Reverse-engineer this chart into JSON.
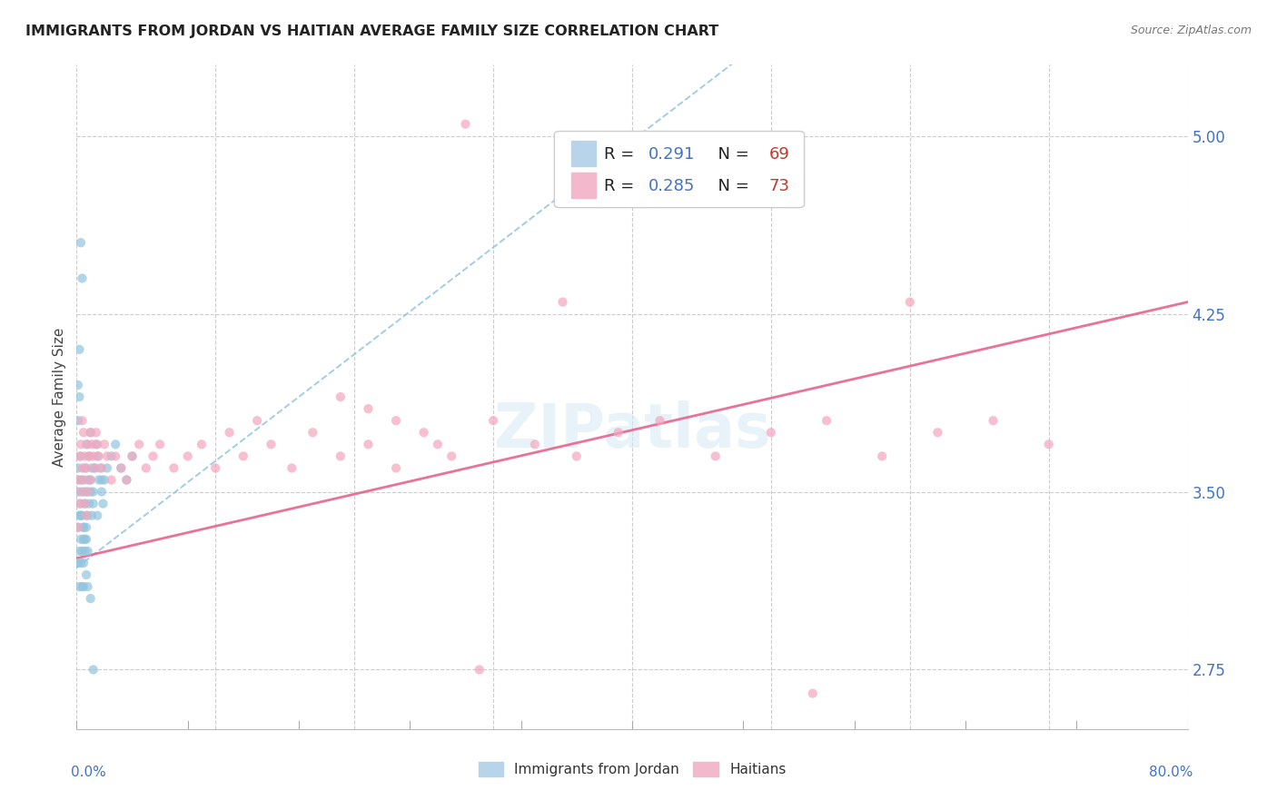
{
  "title": "IMMIGRANTS FROM JORDAN VS HAITIAN AVERAGE FAMILY SIZE CORRELATION CHART",
  "source": "Source: ZipAtlas.com",
  "ylabel": "Average Family Size",
  "right_yticks": [
    2.75,
    3.5,
    4.25,
    5.0
  ],
  "legend1_r": "0.291",
  "legend1_n": "69",
  "legend2_r": "0.285",
  "legend2_n": "73",
  "jordan_color": "#92c5de",
  "haitian_color": "#f4a6be",
  "jordan_line_color": "#92c5de",
  "haitian_line_color": "#e8638c",
  "background_color": "#ffffff",
  "xlim": [
    0.0,
    0.8
  ],
  "ylim": [
    2.5,
    5.3
  ],
  "jordan_x": [
    0.001,
    0.001,
    0.001,
    0.001,
    0.002,
    0.002,
    0.002,
    0.002,
    0.003,
    0.003,
    0.003,
    0.003,
    0.004,
    0.004,
    0.004,
    0.004,
    0.005,
    0.005,
    0.005,
    0.005,
    0.006,
    0.006,
    0.006,
    0.007,
    0.007,
    0.007,
    0.008,
    0.008,
    0.008,
    0.009,
    0.009,
    0.01,
    0.01,
    0.011,
    0.011,
    0.012,
    0.013,
    0.014,
    0.015,
    0.016,
    0.017,
    0.018,
    0.019,
    0.02,
    0.022,
    0.025,
    0.028,
    0.032,
    0.036,
    0.04,
    0.001,
    0.001,
    0.002,
    0.002,
    0.003,
    0.004,
    0.005,
    0.006,
    0.007,
    0.008,
    0.01,
    0.012,
    0.003,
    0.005,
    0.007,
    0.01,
    0.012,
    0.015,
    0.018
  ],
  "jordan_y": [
    3.5,
    3.6,
    3.35,
    3.2,
    3.55,
    3.4,
    3.25,
    3.1,
    3.65,
    3.45,
    3.3,
    3.2,
    3.55,
    3.4,
    3.25,
    3.1,
    3.5,
    3.35,
    3.2,
    3.1,
    3.6,
    3.45,
    3.3,
    3.7,
    3.5,
    3.35,
    3.55,
    3.4,
    3.25,
    3.65,
    3.45,
    3.75,
    3.55,
    3.6,
    3.4,
    3.5,
    3.6,
    3.7,
    3.65,
    3.55,
    3.6,
    3.5,
    3.45,
    3.55,
    3.6,
    3.65,
    3.7,
    3.6,
    3.55,
    3.65,
    3.8,
    3.95,
    4.1,
    3.9,
    4.55,
    4.4,
    3.3,
    3.25,
    3.15,
    3.1,
    3.05,
    2.75,
    3.4,
    3.35,
    3.3,
    3.5,
    3.45,
    3.4,
    3.55
  ],
  "haitian_x": [
    0.001,
    0.001,
    0.002,
    0.002,
    0.003,
    0.003,
    0.004,
    0.004,
    0.005,
    0.005,
    0.006,
    0.006,
    0.007,
    0.007,
    0.008,
    0.008,
    0.009,
    0.01,
    0.01,
    0.011,
    0.012,
    0.013,
    0.014,
    0.015,
    0.016,
    0.018,
    0.02,
    0.022,
    0.025,
    0.028,
    0.032,
    0.036,
    0.04,
    0.045,
    0.05,
    0.055,
    0.06,
    0.07,
    0.08,
    0.09,
    0.1,
    0.11,
    0.12,
    0.13,
    0.14,
    0.155,
    0.17,
    0.19,
    0.21,
    0.23,
    0.25,
    0.27,
    0.3,
    0.33,
    0.36,
    0.39,
    0.42,
    0.46,
    0.5,
    0.54,
    0.58,
    0.62,
    0.66,
    0.7,
    0.28,
    0.35,
    0.6,
    0.19,
    0.21,
    0.23,
    0.26,
    0.29,
    0.53
  ],
  "haitian_y": [
    3.55,
    3.35,
    3.65,
    3.45,
    3.7,
    3.5,
    3.8,
    3.6,
    3.75,
    3.55,
    3.65,
    3.45,
    3.6,
    3.4,
    3.7,
    3.5,
    3.65,
    3.75,
    3.55,
    3.7,
    3.65,
    3.6,
    3.75,
    3.7,
    3.65,
    3.6,
    3.7,
    3.65,
    3.55,
    3.65,
    3.6,
    3.55,
    3.65,
    3.7,
    3.6,
    3.65,
    3.7,
    3.6,
    3.65,
    3.7,
    3.6,
    3.75,
    3.65,
    3.8,
    3.7,
    3.6,
    3.75,
    3.65,
    3.7,
    3.6,
    3.75,
    3.65,
    3.8,
    3.7,
    3.65,
    3.75,
    3.8,
    3.65,
    3.75,
    3.8,
    3.65,
    3.75,
    3.8,
    3.7,
    5.05,
    4.3,
    4.3,
    3.9,
    3.85,
    3.8,
    3.7,
    2.75,
    2.65
  ]
}
